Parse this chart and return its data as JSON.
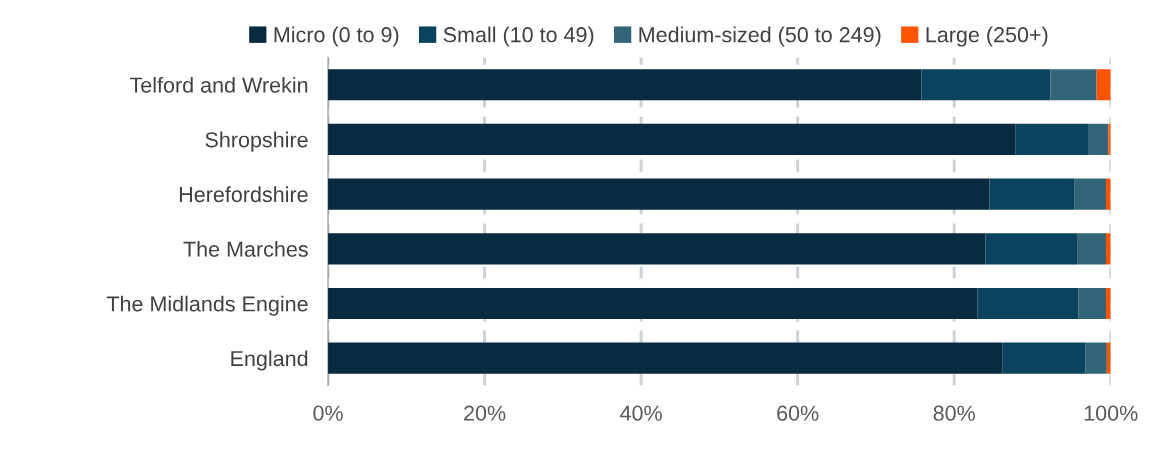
{
  "chart_data": {
    "type": "bar",
    "orientation": "horizontal",
    "stacked": true,
    "categories": [
      "Telford and Wrekin",
      "Shropshire",
      "Herefordshire",
      "The Marches",
      "The Midlands Engine",
      "England"
    ],
    "series": [
      {
        "name": "Micro (0 to 9)",
        "color": "#082b3f",
        "values": [
          75.8,
          87.8,
          84.5,
          84.0,
          83.0,
          86.2
        ]
      },
      {
        "name": "Small (10 to 49)",
        "color": "#0b435e",
        "values": [
          16.5,
          9.4,
          10.9,
          11.7,
          12.9,
          10.6
        ]
      },
      {
        "name": "Medium-sized (50 to 249)",
        "color": "#336579",
        "values": [
          5.9,
          2.5,
          4.0,
          3.7,
          3.5,
          2.7
        ]
      },
      {
        "name": "Large (250+)",
        "color": "#ff5400",
        "values": [
          1.8,
          0.3,
          0.6,
          0.6,
          0.6,
          0.5
        ]
      }
    ],
    "xlim": [
      0,
      100
    ],
    "xticks": [
      {
        "value": 0,
        "label": "0%"
      },
      {
        "value": 20,
        "label": "20%"
      },
      {
        "value": 40,
        "label": "40%"
      },
      {
        "value": 60,
        "label": "60%"
      },
      {
        "value": 80,
        "label": "80%"
      },
      {
        "value": 100,
        "label": "100%"
      }
    ],
    "grid": "x",
    "legend": "top"
  }
}
